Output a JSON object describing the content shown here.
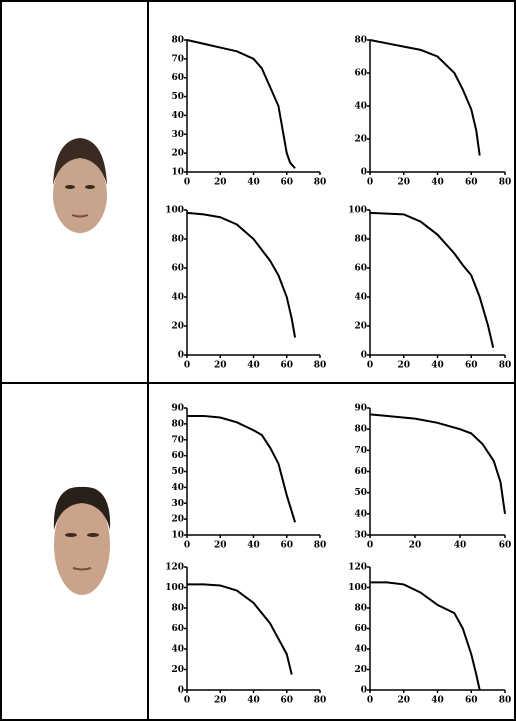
{
  "chart_data": [
    {
      "type": "line",
      "x": [
        0,
        10,
        20,
        30,
        40,
        45,
        50,
        55,
        58,
        60,
        62,
        65
      ],
      "values": [
        80,
        78,
        76,
        74,
        70,
        65,
        55,
        45,
        30,
        20,
        15,
        12
      ],
      "color": "#000000",
      "xlim": [
        0,
        80
      ],
      "ylim": [
        10,
        80
      ],
      "xticks": [
        0,
        20,
        40,
        60,
        80
      ],
      "yticks": [
        10,
        20,
        30,
        40,
        50,
        60,
        70,
        80
      ]
    },
    {
      "type": "line",
      "x": [
        0,
        10,
        20,
        30,
        40,
        50,
        55,
        60,
        63,
        65
      ],
      "values": [
        80,
        78,
        76,
        74,
        70,
        60,
        50,
        38,
        25,
        10
      ],
      "color": "#000000",
      "xlim": [
        0,
        80
      ],
      "ylim": [
        0,
        80
      ],
      "xticks": [
        0,
        20,
        40,
        60,
        80
      ],
      "yticks": [
        0,
        20,
        40,
        60,
        80
      ]
    },
    {
      "type": "line",
      "x": [
        0,
        10,
        20,
        30,
        40,
        50,
        55,
        60,
        63,
        65
      ],
      "values": [
        98,
        97,
        95,
        90,
        80,
        65,
        55,
        40,
        25,
        12
      ],
      "color": "#000000",
      "xlim": [
        0,
        80
      ],
      "ylim": [
        0,
        100
      ],
      "xticks": [
        0,
        20,
        40,
        60,
        80
      ],
      "yticks": [
        0,
        20,
        40,
        60,
        80,
        100
      ]
    },
    {
      "type": "line",
      "x": [
        0,
        20,
        30,
        40,
        50,
        55,
        60,
        65,
        70,
        73
      ],
      "values": [
        98,
        97,
        92,
        83,
        70,
        62,
        55,
        40,
        20,
        5
      ],
      "color": "#000000",
      "xlim": [
        0,
        80
      ],
      "ylim": [
        0,
        100
      ],
      "xticks": [
        0,
        20,
        40,
        60,
        80
      ],
      "yticks": [
        0,
        20,
        40,
        60,
        80,
        100
      ]
    },
    {
      "type": "line",
      "x": [
        0,
        10,
        20,
        30,
        40,
        45,
        50,
        55,
        60,
        65
      ],
      "values": [
        85,
        85,
        84,
        81,
        76,
        73,
        65,
        55,
        35,
        18
      ],
      "color": "#000000",
      "xlim": [
        0,
        80
      ],
      "ylim": [
        10,
        90
      ],
      "xticks": [
        0,
        20,
        40,
        60,
        80
      ],
      "yticks": [
        10,
        20,
        30,
        40,
        50,
        60,
        70,
        80,
        90
      ]
    },
    {
      "type": "line",
      "x": [
        0,
        10,
        20,
        30,
        40,
        45,
        50,
        55,
        58,
        60
      ],
      "values": [
        87,
        86,
        85,
        83,
        80,
        78,
        73,
        65,
        55,
        40
      ],
      "color": "#000000",
      "xlim": [
        0,
        60
      ],
      "ylim": [
        30,
        90
      ],
      "xticks": [
        0,
        20,
        40,
        60
      ],
      "yticks": [
        30,
        40,
        50,
        60,
        70,
        80,
        90
      ]
    },
    {
      "type": "line",
      "x": [
        0,
        10,
        20,
        30,
        40,
        50,
        55,
        60,
        63
      ],
      "values": [
        103,
        103,
        102,
        97,
        85,
        65,
        50,
        35,
        15
      ],
      "color": "#000000",
      "xlim": [
        0,
        80
      ],
      "ylim": [
        0,
        120
      ],
      "xticks": [
        0,
        20,
        40,
        60,
        80
      ],
      "yticks": [
        0,
        20,
        40,
        60,
        80,
        100,
        120
      ]
    },
    {
      "type": "line",
      "x": [
        0,
        10,
        20,
        30,
        40,
        50,
        55,
        60,
        63,
        65
      ],
      "values": [
        105,
        105,
        103,
        95,
        83,
        75,
        60,
        35,
        15,
        0
      ],
      "color": "#000000",
      "xlim": [
        0,
        80
      ],
      "ylim": [
        0,
        120
      ],
      "xticks": [
        0,
        20,
        40,
        60,
        80
      ],
      "yticks": [
        0,
        20,
        40,
        60,
        80,
        100,
        120
      ]
    }
  ]
}
